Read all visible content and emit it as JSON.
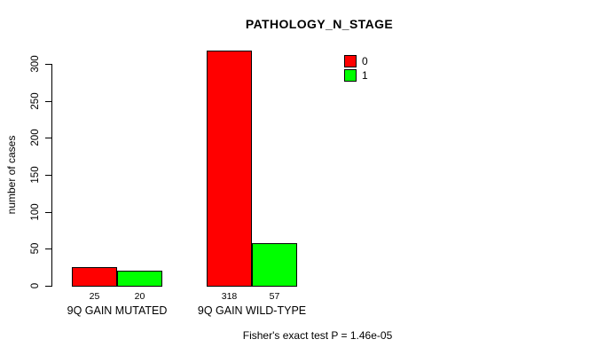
{
  "chart_data": {
    "type": "bar",
    "title": "PATHOLOGY_N_STAGE",
    "xlabel": "",
    "ylabel": "number of cases",
    "categories": [
      "9Q GAIN MUTATED",
      "9Q GAIN WILD-TYPE"
    ],
    "series": [
      {
        "name": "0",
        "color": "#ff0000",
        "values": [
          25,
          318
        ]
      },
      {
        "name": "1",
        "color": "#00ff00",
        "values": [
          20,
          57
        ]
      }
    ],
    "yticks": [
      0,
      50,
      100,
      150,
      200,
      250,
      300
    ],
    "ylim": [
      0,
      300
    ],
    "grid": false,
    "legend_position": "top-right",
    "value_labels_shown": true,
    "annotation": "Fisher's exact test P = 1.46e-05",
    "bar_border_color": "#000000",
    "axis_color": "#000000",
    "background": "#ffffff"
  }
}
